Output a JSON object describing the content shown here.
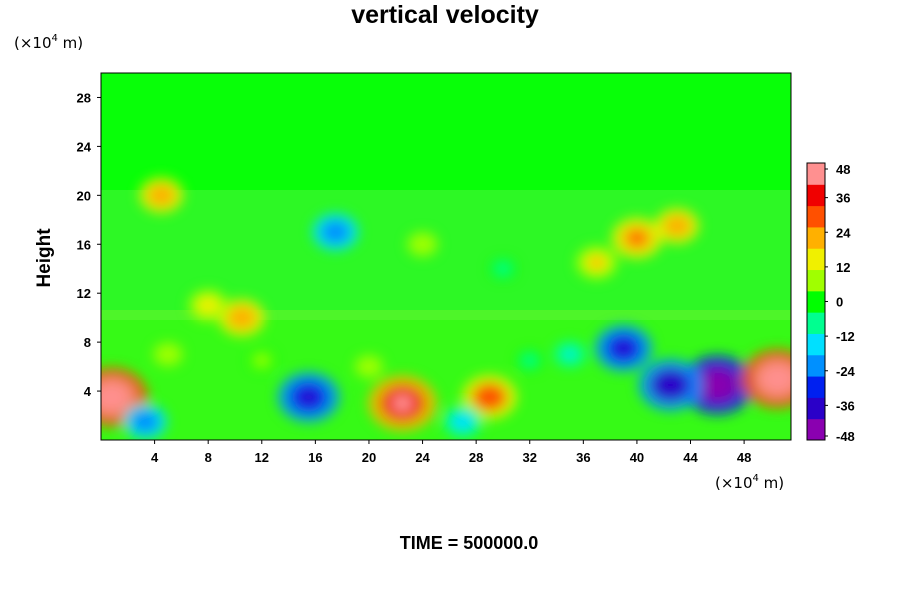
{
  "chart_data": {
    "type": "heatmap",
    "title": "vertical velocity",
    "ylabel": "Height",
    "xlabel": "",
    "y_unit": {
      "prefix": "(×10",
      "exp": "4",
      "suffix": " m)"
    },
    "x_unit": {
      "prefix": "(×10",
      "exp": "4",
      "suffix": " m)"
    },
    "x_ticks": [
      4,
      8,
      12,
      16,
      20,
      24,
      28,
      32,
      36,
      40,
      44,
      48
    ],
    "y_ticks": [
      4,
      8,
      12,
      16,
      20,
      24,
      28
    ],
    "xlim": [
      0,
      51.5
    ],
    "ylim": [
      0,
      30
    ],
    "colorbar": {
      "ticks": [
        48,
        36,
        24,
        12,
        0,
        -12,
        -24,
        -36,
        -48
      ],
      "range": [
        -48,
        48
      ],
      "colors": [
        "#8a00b0",
        "#2a00c8",
        "#0020f0",
        "#0090ff",
        "#00e0ff",
        "#00ff90",
        "#00ff00",
        "#a0ff00",
        "#f0f000",
        "#ffb000",
        "#ff5000",
        "#f00000",
        "#ff9090"
      ]
    },
    "features": [
      {
        "x": 0.8,
        "y": 3.5,
        "value": 48
      },
      {
        "x": 15.5,
        "y": 3.5,
        "value": -38
      },
      {
        "x": 22.5,
        "y": 3.0,
        "value": 44
      },
      {
        "x": 29.0,
        "y": 3.5,
        "value": 32
      },
      {
        "x": 27.0,
        "y": 1.5,
        "value": -18
      },
      {
        "x": 3.3,
        "y": 1.5,
        "value": -22
      },
      {
        "x": 46.0,
        "y": 4.5,
        "value": -48
      },
      {
        "x": 42.5,
        "y": 4.5,
        "value": -40
      },
      {
        "x": 50.5,
        "y": 5.0,
        "value": 48
      },
      {
        "x": 39.0,
        "y": 7.5,
        "value": -34
      },
      {
        "x": 35.0,
        "y": 7.0,
        "value": -12
      },
      {
        "x": 17.5,
        "y": 17.0,
        "value": -24
      },
      {
        "x": 40.0,
        "y": 16.5,
        "value": 28
      },
      {
        "x": 43.0,
        "y": 17.5,
        "value": 22
      },
      {
        "x": 37.0,
        "y": 14.5,
        "value": 20
      },
      {
        "x": 10.5,
        "y": 10.0,
        "value": 24
      },
      {
        "x": 8.0,
        "y": 11.0,
        "value": 18
      },
      {
        "x": 4.5,
        "y": 20.0,
        "value": 22
      },
      {
        "x": 12.0,
        "y": 6.5,
        "value": 6
      },
      {
        "x": 20.0,
        "y": 6.0,
        "value": 8
      },
      {
        "x": 5.0,
        "y": 7.0,
        "value": 9
      },
      {
        "x": 32.0,
        "y": 6.5,
        "value": -6
      },
      {
        "x": 24.0,
        "y": 16.0,
        "value": 10
      },
      {
        "x": 30.0,
        "y": 14.0,
        "value": -6
      }
    ]
  },
  "footer": "TIME = 500000.0"
}
